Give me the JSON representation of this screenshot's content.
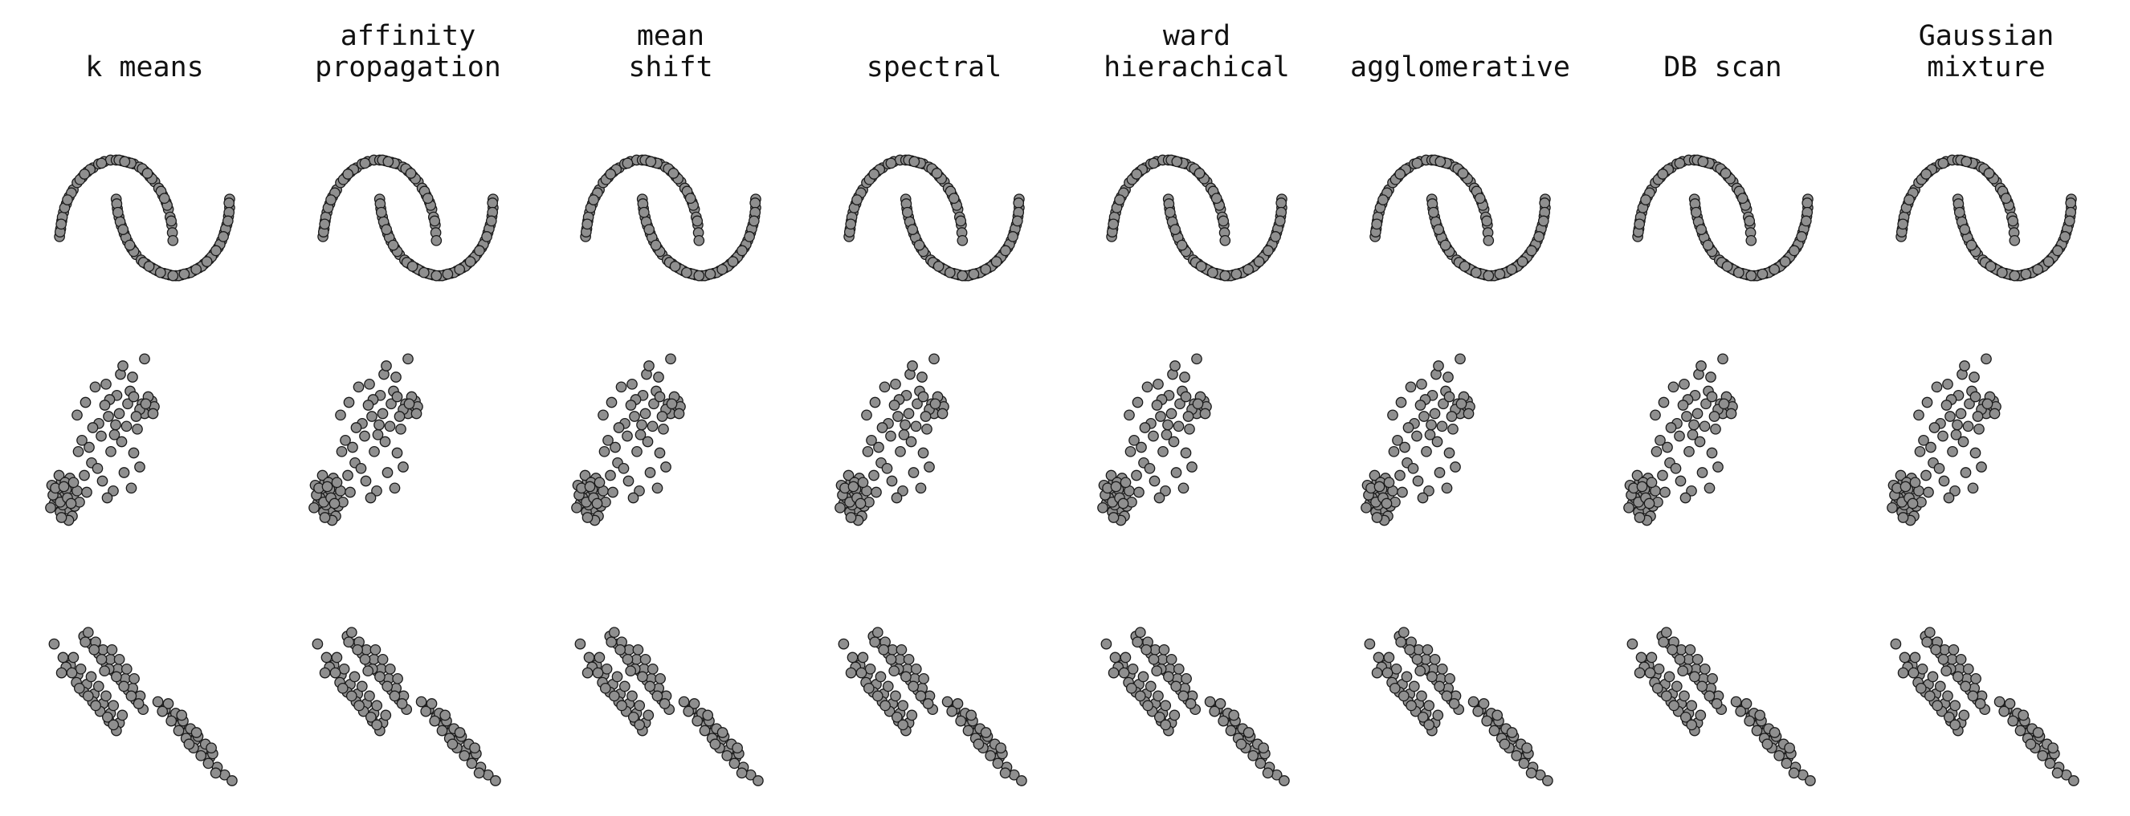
{
  "figure": {
    "point_color": "#8f8f8f",
    "edge_color": "#1a1a1a",
    "background": "#ffffff"
  },
  "columns": [
    {
      "title_lines": [
        "k means"
      ]
    },
    {
      "title_lines": [
        "affinity",
        "propagation"
      ]
    },
    {
      "title_lines": [
        "mean",
        "shift"
      ]
    },
    {
      "title_lines": [
        "spectral"
      ]
    },
    {
      "title_lines": [
        "ward",
        "hierachical"
      ]
    },
    {
      "title_lines": [
        "agglomerative"
      ]
    },
    {
      "title_lines": [
        "DB scan"
      ]
    },
    {
      "title_lines": [
        "Gaussian",
        "mixture"
      ]
    }
  ],
  "chart_data": {
    "type": "scatter",
    "layout": "grid of 3 datasets (rows) x 8 clustering methods (columns); every panel shows the same dataset points, all in one grey color, no axes, no grid, no legend",
    "axes_visible": false,
    "grid": false,
    "legend": "none",
    "rows": [
      {
        "dataset": "two interleaving half circles",
        "xlim": [
          -1.2,
          2.2
        ],
        "ylim": [
          -0.7,
          1.2
        ],
        "points": [
          [
            -1.0,
            0.02
          ],
          [
            -0.98,
            0.12
          ],
          [
            -0.96,
            0.22
          ],
          [
            -0.93,
            0.33
          ],
          [
            -0.88,
            0.44
          ],
          [
            -0.83,
            0.53
          ],
          [
            -0.76,
            0.62
          ],
          [
            -0.69,
            0.71
          ],
          [
            -0.6,
            0.78
          ],
          [
            -0.51,
            0.85
          ],
          [
            -0.41,
            0.9
          ],
          [
            -0.31,
            0.95
          ],
          [
            -0.21,
            0.98
          ],
          [
            -0.1,
            1.0
          ],
          [
            0.0,
            1.0
          ],
          [
            0.1,
            0.99
          ],
          [
            0.21,
            0.97
          ],
          [
            0.31,
            0.95
          ],
          [
            0.41,
            0.91
          ],
          [
            0.5,
            0.86
          ],
          [
            0.59,
            0.79
          ],
          [
            0.68,
            0.72
          ],
          [
            0.75,
            0.64
          ],
          [
            0.82,
            0.55
          ],
          [
            0.88,
            0.46
          ],
          [
            0.92,
            0.37
          ],
          [
            0.95,
            0.27
          ],
          [
            0.98,
            0.17
          ],
          [
            0.99,
            0.07
          ],
          [
            1.0,
            -0.03
          ],
          [
            -0.99,
            0.08
          ],
          [
            -0.95,
            0.27
          ],
          [
            -0.91,
            0.39
          ],
          [
            -0.79,
            0.58
          ],
          [
            -0.64,
            0.75
          ],
          [
            -0.46,
            0.88
          ],
          [
            -0.26,
            0.96
          ],
          [
            0.05,
            1.0
          ],
          [
            0.26,
            0.96
          ],
          [
            0.46,
            0.89
          ],
          [
            0.63,
            0.76
          ],
          [
            0.79,
            0.6
          ],
          [
            0.9,
            0.42
          ],
          [
            0.97,
            0.22
          ],
          [
            -0.97,
            0.18
          ],
          [
            -0.86,
            0.49
          ],
          [
            -0.56,
            0.82
          ],
          [
            0.15,
            0.98
          ],
          [
            0.55,
            0.83
          ],
          [
            0.85,
            0.51
          ],
          [
            0.0,
            0.5
          ],
          [
            0.02,
            0.38
          ],
          [
            0.05,
            0.27
          ],
          [
            0.09,
            0.16
          ],
          [
            0.14,
            0.06
          ],
          [
            0.2,
            -0.04
          ],
          [
            0.27,
            -0.13
          ],
          [
            0.35,
            -0.21
          ],
          [
            0.44,
            -0.28
          ],
          [
            0.53,
            -0.33
          ],
          [
            0.63,
            -0.38
          ],
          [
            0.73,
            -0.42
          ],
          [
            0.84,
            -0.45
          ],
          [
            0.94,
            -0.47
          ],
          [
            1.05,
            -0.48
          ],
          [
            1.15,
            -0.47
          ],
          [
            1.26,
            -0.45
          ],
          [
            1.36,
            -0.42
          ],
          [
            1.46,
            -0.38
          ],
          [
            1.55,
            -0.33
          ],
          [
            1.64,
            -0.27
          ],
          [
            1.72,
            -0.2
          ],
          [
            1.8,
            -0.12
          ],
          [
            1.86,
            -0.03
          ],
          [
            1.91,
            0.07
          ],
          [
            1.95,
            0.17
          ],
          [
            1.98,
            0.28
          ],
          [
            2.0,
            0.39
          ],
          [
            2.0,
            0.5
          ],
          [
            1.99,
            0.45
          ],
          [
            0.01,
            0.44
          ],
          [
            0.07,
            0.21
          ],
          [
            0.17,
            0.01
          ],
          [
            0.31,
            -0.17
          ],
          [
            0.48,
            -0.31
          ],
          [
            0.68,
            -0.4
          ],
          [
            0.89,
            -0.46
          ],
          [
            1.1,
            -0.48
          ],
          [
            1.31,
            -0.44
          ],
          [
            1.51,
            -0.36
          ],
          [
            1.68,
            -0.24
          ],
          [
            1.83,
            -0.08
          ],
          [
            1.93,
            0.12
          ],
          [
            1.99,
            0.33
          ],
          [
            0.03,
            0.33
          ],
          [
            0.24,
            -0.09
          ],
          [
            0.58,
            -0.36
          ],
          [
            1.0,
            -0.48
          ],
          [
            1.41,
            -0.4
          ],
          [
            1.76,
            -0.16
          ],
          [
            1.97,
            0.22
          ],
          [
            0.12,
            0.11
          ],
          [
            0.78,
            -0.44
          ],
          [
            1.2,
            -0.46
          ],
          [
            1.6,
            -0.3
          ],
          [
            1.89,
            0.02
          ]
        ]
      },
      {
        "dataset": "blobs with varied variances",
        "xlim": [
          -10,
          6
        ],
        "ylim": [
          -6,
          8
        ],
        "points": [
          [
            -9.2,
            -2.6
          ],
          [
            -8.6,
            -3.1
          ],
          [
            -8.9,
            -1.8
          ],
          [
            -8.1,
            -2.2
          ],
          [
            -9.5,
            -3.4
          ],
          [
            -8.4,
            -3.8
          ],
          [
            -7.9,
            -3.0
          ],
          [
            -9.0,
            -4.0
          ],
          [
            -8.7,
            -2.9
          ],
          [
            -8.2,
            -1.6
          ],
          [
            -9.7,
            -2.1
          ],
          [
            -8.0,
            -4.3
          ],
          [
            -8.8,
            -3.5
          ],
          [
            -9.3,
            -3.0
          ],
          [
            -7.6,
            -2.5
          ],
          [
            -8.5,
            -2.4
          ],
          [
            -9.1,
            -1.4
          ],
          [
            -7.8,
            -3.6
          ],
          [
            -8.3,
            -4.6
          ],
          [
            -9.6,
            -2.8
          ],
          [
            -8.6,
            -1.9
          ],
          [
            -7.4,
            -3.3
          ],
          [
            -9.0,
            -3.3
          ],
          [
            -8.4,
            -3.0
          ],
          [
            -7.9,
            -1.9
          ],
          [
            -8.9,
            -4.4
          ],
          [
            -9.4,
            -2.3
          ],
          [
            -8.1,
            -3.4
          ],
          [
            -8.7,
            -2.2
          ],
          [
            -9.8,
            -3.7
          ],
          [
            -2.2,
            3.7
          ],
          [
            -1.8,
            3.4
          ],
          [
            -1.4,
            3.9
          ],
          [
            -1.6,
            3.1
          ],
          [
            -2.0,
            3.0
          ],
          [
            -1.2,
            3.5
          ],
          [
            -2.4,
            3.3
          ],
          [
            -1.7,
            4.2
          ],
          [
            -1.9,
            3.7
          ],
          [
            -1.3,
            3.0
          ],
          [
            -4.5,
            1.5
          ],
          [
            -3.2,
            4.6
          ],
          [
            -5.8,
            2.3
          ],
          [
            -2.9,
            0.2
          ],
          [
            -6.4,
            -0.5
          ],
          [
            -4.1,
            3.0
          ],
          [
            -3.7,
            -1.2
          ],
          [
            -5.2,
            5.1
          ],
          [
            -6.9,
            3.8
          ],
          [
            -2.6,
            1.9
          ],
          [
            -4.8,
            0.3
          ],
          [
            -3.5,
            2.1
          ],
          [
            -5.5,
            -1.8
          ],
          [
            -7.2,
            1.1
          ],
          [
            -4.3,
            4.3
          ],
          [
            -3.0,
            5.6
          ],
          [
            -6.1,
            4.9
          ],
          [
            -5.0,
            2.8
          ],
          [
            -2.4,
            -0.8
          ],
          [
            -7.6,
            2.9
          ],
          [
            -4.6,
            -2.5
          ],
          [
            -3.9,
            1.0
          ],
          [
            -6.6,
            0.6
          ],
          [
            -5.9,
            -0.9
          ],
          [
            -4.0,
            5.8
          ],
          [
            -2.0,
            6.9
          ],
          [
            -3.4,
            3.7
          ],
          [
            -6.3,
            2.0
          ],
          [
            -5.1,
            -3.0
          ],
          [
            -7.0,
            -1.4
          ],
          [
            -4.9,
            4.0
          ],
          [
            -3.1,
            -2.3
          ],
          [
            -5.6,
            1.4
          ],
          [
            -2.7,
            2.8
          ],
          [
            -6.8,
            -2.6
          ],
          [
            -3.8,
            6.4
          ],
          [
            -4.4,
            2.2
          ],
          [
            -7.5,
            0.3
          ],
          [
            -5.3,
            3.6
          ],
          [
            -2.9,
            4.2
          ]
        ]
      },
      {
        "dataset": "anisotropically distributed blobs",
        "xlim": [
          -8,
          5
        ],
        "ylim": [
          -6,
          4
        ],
        "points": [
          [
            -7.6,
            1.6
          ],
          [
            -7.0,
            0.9
          ],
          [
            -6.5,
            0.5
          ],
          [
            -6.0,
            0.0
          ],
          [
            -5.4,
            -0.5
          ],
          [
            -4.9,
            -1.0
          ],
          [
            -4.3,
            -1.5
          ],
          [
            -3.8,
            -2.0
          ],
          [
            -3.2,
            -2.5
          ],
          [
            -6.8,
            0.4
          ],
          [
            -6.1,
            -0.4
          ],
          [
            -5.6,
            -0.9
          ],
          [
            -5.0,
            -1.4
          ],
          [
            -4.5,
            -1.9
          ],
          [
            -3.9,
            -2.4
          ],
          [
            -3.4,
            -2.9
          ],
          [
            -6.3,
            0.9
          ],
          [
            -5.8,
            0.3
          ],
          [
            -5.1,
            -0.1
          ],
          [
            -4.6,
            -0.6
          ],
          [
            -4.1,
            -1.1
          ],
          [
            -3.6,
            -1.6
          ],
          [
            -3.0,
            -2.1
          ],
          [
            -7.1,
            0.1
          ],
          [
            -5.9,
            -0.7
          ],
          [
            -4.8,
            -1.6
          ],
          [
            -4.0,
            -2.2
          ],
          [
            -5.3,
            -1.1
          ],
          [
            -6.4,
            0.1
          ],
          [
            -3.6,
            -2.6
          ],
          [
            -5.6,
            2.0
          ],
          [
            -5.1,
            1.6
          ],
          [
            -4.6,
            1.1
          ],
          [
            -4.1,
            0.6
          ],
          [
            -3.6,
            0.2
          ],
          [
            -3.1,
            -0.3
          ],
          [
            -2.6,
            -0.8
          ],
          [
            -2.1,
            -1.3
          ],
          [
            -1.6,
            -1.8
          ],
          [
            -5.3,
            2.2
          ],
          [
            -4.8,
            1.7
          ],
          [
            -4.3,
            1.3
          ],
          [
            -3.8,
            0.8
          ],
          [
            -3.3,
            0.3
          ],
          [
            -2.8,
            -0.2
          ],
          [
            -2.3,
            -0.7
          ],
          [
            -1.8,
            -1.1
          ],
          [
            -4.9,
            1.3
          ],
          [
            -4.4,
            0.8
          ],
          [
            -3.9,
            0.3
          ],
          [
            -3.4,
            -0.1
          ],
          [
            -2.9,
            -0.6
          ],
          [
            -2.4,
            -1.1
          ],
          [
            -1.9,
            -1.5
          ],
          [
            -5.5,
            1.7
          ],
          [
            -3.7,
            1.3
          ],
          [
            -3.2,
            0.8
          ],
          [
            -2.7,
            0.3
          ],
          [
            -2.2,
            -0.2
          ],
          [
            -4.2,
            0.2
          ],
          [
            -0.6,
            -1.4
          ],
          [
            -0.1,
            -1.8
          ],
          [
            0.4,
            -2.2
          ],
          [
            0.9,
            -2.6
          ],
          [
            1.4,
            -3.0
          ],
          [
            1.9,
            -3.4
          ],
          [
            2.4,
            -3.9
          ],
          [
            2.9,
            -4.3
          ],
          [
            3.4,
            -4.8
          ],
          [
            3.9,
            -5.2
          ],
          [
            0.1,
            -1.5
          ],
          [
            0.6,
            -2.0
          ],
          [
            1.1,
            -2.4
          ],
          [
            1.6,
            -2.8
          ],
          [
            2.1,
            -3.2
          ],
          [
            2.6,
            -3.6
          ],
          [
            3.1,
            -4.1
          ],
          [
            -0.3,
            -1.9
          ],
          [
            0.3,
            -2.4
          ],
          [
            0.8,
            -2.9
          ],
          [
            1.3,
            -3.3
          ],
          [
            1.8,
            -3.8
          ],
          [
            2.3,
            -4.2
          ],
          [
            2.8,
            -4.6
          ],
          [
            3.3,
            -5.1
          ],
          [
            1.0,
            -2.1
          ],
          [
            2.0,
            -3.0
          ],
          [
            3.0,
            -3.8
          ],
          [
            1.5,
            -3.6
          ],
          [
            4.4,
            -5.5
          ]
        ]
      }
    ]
  }
}
